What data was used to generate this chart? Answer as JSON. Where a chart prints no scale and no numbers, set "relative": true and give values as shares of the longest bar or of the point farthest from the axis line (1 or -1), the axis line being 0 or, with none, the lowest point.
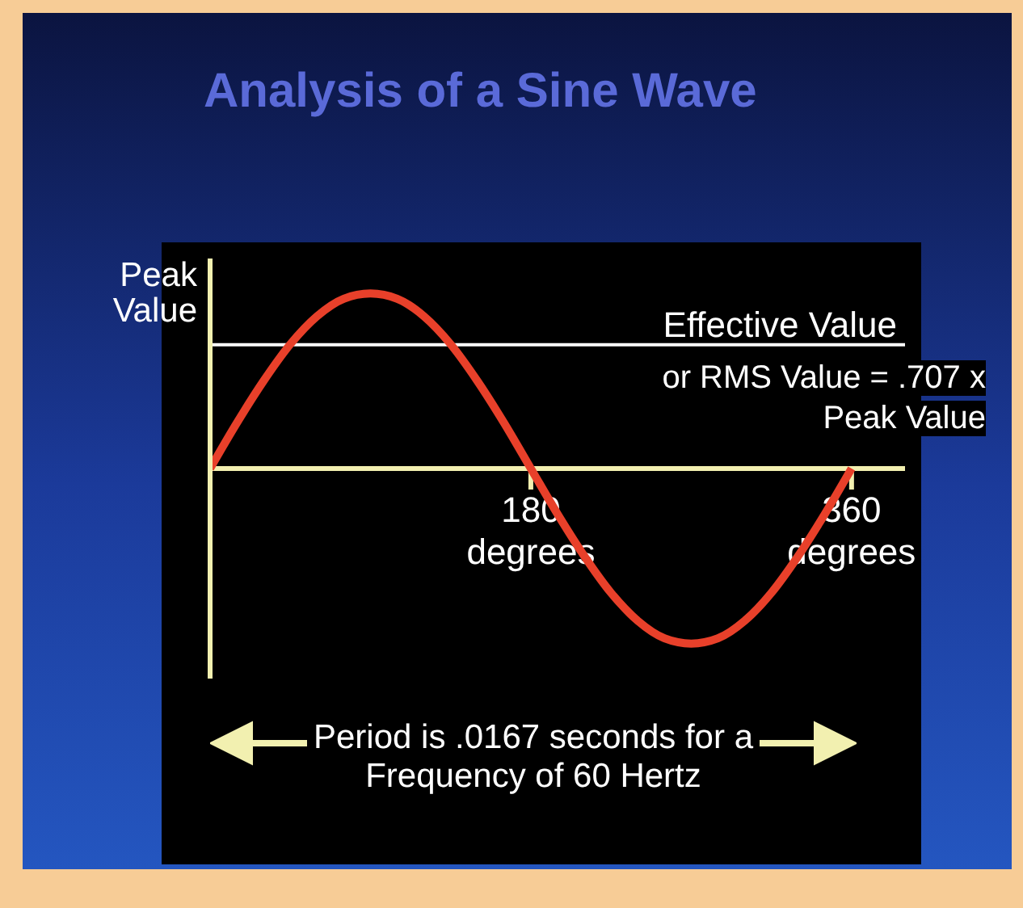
{
  "chart_data": {
    "type": "line",
    "title": "Analysis of a Sine Wave",
    "ylabel": "Peak Value",
    "relative": true,
    "color": "#e8402a",
    "x": [
      0,
      15,
      30,
      45,
      60,
      75,
      90,
      105,
      120,
      135,
      150,
      165,
      180,
      195,
      210,
      225,
      240,
      255,
      270,
      285,
      300,
      315,
      330,
      345,
      360
    ],
    "values": [
      0,
      0.26,
      0.5,
      0.71,
      0.87,
      0.97,
      1,
      0.97,
      0.87,
      0.71,
      0.5,
      0.26,
      0,
      -0.26,
      -0.5,
      -0.71,
      -0.87,
      -0.97,
      -1,
      -0.97,
      -0.87,
      -0.71,
      -0.5,
      -0.26,
      0
    ],
    "xlim": [
      0,
      390
    ],
    "xticks": [
      {
        "value": 180,
        "label": "180 degrees"
      },
      {
        "value": 360,
        "label": "360 degrees"
      }
    ],
    "ref_lines": [
      {
        "axis": "y",
        "value": 0.707,
        "label": "Effective Value",
        "color": "#ffffff"
      }
    ],
    "annotations": [
      "or RMS Value = .707 x Peak Value",
      "Period is .0167 seconds for a Frequency of 60 Hertz"
    ]
  }
}
